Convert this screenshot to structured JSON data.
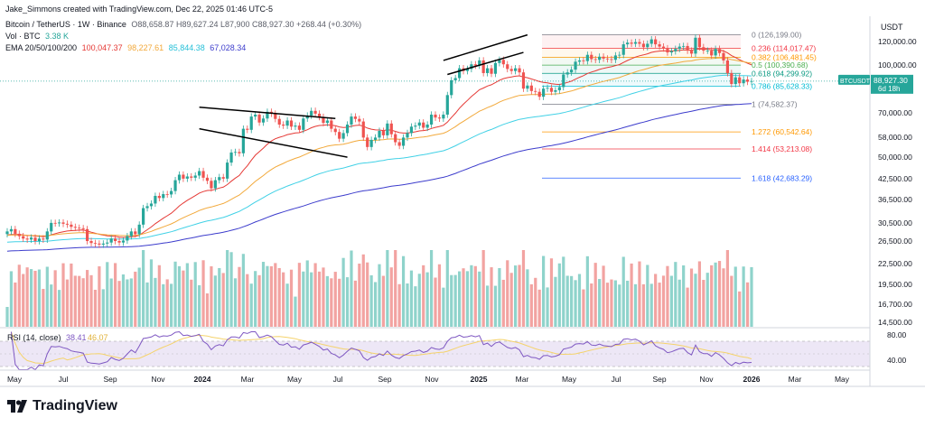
{
  "credit": "Jake_Simmons created with TradingView.com, Dec 22, 2025 01:46 UTC-5",
  "header": {
    "symbol_line": "Bitcoin / TetherUS · 1W · Binance",
    "ohlc": "O88,658.87 H89,627.24 L87,900 C88,927.30 +268.44 (+0.30%)",
    "vol_label": "Vol · BTC",
    "vol_value": "3.38 K",
    "ema_label": "EMA 20/50/100/200",
    "ema_values": [
      "100,047.37",
      "98,227.61",
      "85,844.38",
      "67,028.34"
    ],
    "ema_colors": [
      "#e53935",
      "#f2a93b",
      "#41d1e6",
      "#3c3ccc"
    ]
  },
  "price_axis": {
    "unit": "USDT",
    "ticks": [
      "120,000.00",
      "100,000.00",
      "70,000.00",
      "58,000.00",
      "50,000.00",
      "42,500.00",
      "36,500.00",
      "30,500.00",
      "26,500.00",
      "22,500.00",
      "19,500.00",
      "16,700.00",
      "14,500.00"
    ],
    "last_symbol": "BTCUSDT",
    "last_price": "88,927.30",
    "countdown": "6d 18h"
  },
  "rsi": {
    "label": "RSI (14, close)",
    "value": "38.41",
    "ma_value": "46.07",
    "ticks": [
      "80.00",
      "40.00"
    ]
  },
  "x_axis": [
    "May",
    "Jul",
    "Sep",
    "Nov",
    "2024",
    "Mar",
    "May",
    "Jul",
    "Sep",
    "Nov",
    "2025",
    "Mar",
    "May",
    "Jul",
    "Sep",
    "Nov",
    "2026",
    "Mar",
    "May"
  ],
  "fib_levels": [
    {
      "ratio": "0",
      "price": "126,199.00",
      "color": "#787b86"
    },
    {
      "ratio": "0.236",
      "price": "114,017.47",
      "color": "#f23645"
    },
    {
      "ratio": "0.382",
      "price": "106,481.45",
      "color": "#ff9800"
    },
    {
      "ratio": "0.5",
      "price": "100,390.68",
      "color": "#4caf50"
    },
    {
      "ratio": "0.618",
      "price": "94,299.92",
      "color": "#089981"
    },
    {
      "ratio": "0.786",
      "price": "85,628.33",
      "color": "#00bcd4"
    },
    {
      "ratio": "1",
      "price": "74,582.37",
      "color": "#787b86"
    },
    {
      "ratio": "1.272",
      "price": "60,542.64",
      "color": "#ff9800"
    },
    {
      "ratio": "1.414",
      "price": "53,213.08",
      "color": "#f23645"
    },
    {
      "ratio": "1.618",
      "price": "42,683.29",
      "color": "#2962ff"
    }
  ],
  "colors": {
    "up": "#26a69a",
    "down": "#ef5350",
    "vol_up": "#8fd3cb",
    "vol_down": "#f2a3a1",
    "rsi_line": "#7e57c2",
    "rsi_ma": "#f5d36b",
    "rsi_band": "#ede7f6"
  },
  "brand": "TradingView",
  "chart_data": {
    "type": "candlestick",
    "interval": "1W",
    "y_scale": "log",
    "x_range": [
      "2023-04",
      "2026-05"
    ],
    "ylim": [
      14500,
      135000
    ],
    "closes": [
      28500,
      29000,
      28000,
      27500,
      27000,
      26800,
      27200,
      26500,
      27000,
      26800,
      28500,
      30400,
      30300,
      30500,
      30200,
      30000,
      29500,
      29300,
      29200,
      29000,
      26500,
      26100,
      26000,
      25800,
      26000,
      26200,
      27000,
      26500,
      26200,
      26600,
      27500,
      28500,
      27900,
      30000,
      34000,
      34500,
      35200,
      37300,
      36700,
      37800,
      37700,
      38700,
      42000,
      43800,
      42500,
      43200,
      42800,
      43500,
      45000,
      42800,
      41800,
      39500,
      42000,
      43000,
      42500,
      48000,
      51800,
      52000,
      51500,
      62000,
      61500,
      68000,
      69000,
      65000,
      67000,
      70500,
      69500,
      66800,
      64000,
      63500,
      66000,
      63000,
      63500,
      61500,
      67000,
      68500,
      71000,
      69500,
      67800,
      64800,
      66000,
      62000,
      60500,
      57500,
      60000,
      64000,
      68000,
      66800,
      65500,
      58000,
      54000,
      57000,
      58000,
      61000,
      59000,
      64500,
      59500,
      56000,
      54500,
      58000,
      60000,
      63000,
      63500,
      65000,
      62500,
      64000,
      69000,
      67500,
      67000,
      69000,
      80000,
      89500,
      91000,
      98000,
      96000,
      97500,
      101000,
      100000,
      104000,
      94500,
      98000,
      94000,
      102000,
      104500,
      101000,
      97500,
      96000,
      98000,
      95000,
      84000,
      86000,
      82500,
      82000,
      79000,
      84000,
      84500,
      82000,
      83000,
      85000,
      93500,
      95000,
      97000,
      103000,
      104000,
      103500,
      108500,
      105000,
      104500,
      107000,
      105500,
      105000,
      104500,
      108000,
      108500,
      117500,
      119000,
      118000,
      119500,
      118000,
      115000,
      118000,
      122000,
      117500,
      115500,
      114000,
      110500,
      111500,
      113500,
      115500,
      116000,
      112000,
      109500,
      123500,
      115000,
      112000,
      112000,
      108000,
      113500,
      110000,
      104000,
      94500,
      87000,
      91500,
      87500,
      90000,
      88500,
      88927.3
    ],
    "ema": [
      {
        "period": 20,
        "last": 100047.37
      },
      {
        "period": 50,
        "last": 98227.61
      },
      {
        "period": 100,
        "last": 85844.38
      },
      {
        "period": 200,
        "last": 67028.34
      }
    ],
    "trendlines": [
      {
        "from": [
          "2024-03-11",
          73000
        ],
        "to": [
          "2024-11-04",
          67000
        ]
      },
      {
        "from": [
          "2024-03-11",
          62000
        ],
        "to": [
          "2024-11-25",
          50000
        ]
      },
      {
        "from": [
          "2025-05-12",
          104000
        ],
        "to": [
          "2025-10-06",
          126199
        ]
      },
      {
        "from": [
          "2025-05-19",
          93500
        ],
        "to": [
          "2025-09-29",
          110500
        ]
      }
    ],
    "rsi_last": 38.41,
    "rsi_ma_last": 46.07
  }
}
